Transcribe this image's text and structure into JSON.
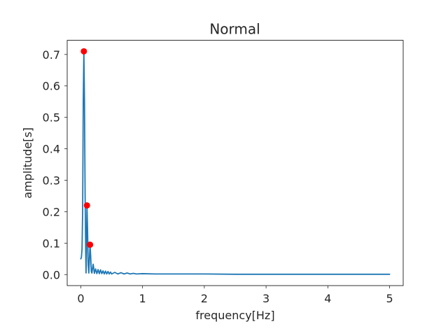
{
  "chart_data": {
    "type": "line",
    "title": "Normal",
    "xlabel": "frequency[Hz]",
    "ylabel": "amplitude[s]",
    "xlim": [
      -0.22,
      5.22
    ],
    "ylim": [
      -0.035,
      0.745
    ],
    "xticks": [
      0,
      1,
      2,
      3,
      4,
      5
    ],
    "yticks": [
      0.0,
      0.1,
      0.2,
      0.3,
      0.4,
      0.5,
      0.6,
      0.7
    ],
    "xtick_labels": [
      "0",
      "1",
      "2",
      "3",
      "4",
      "5"
    ],
    "ytick_labels": [
      "0.0",
      "0.1",
      "0.2",
      "0.3",
      "0.4",
      "0.5",
      "0.6",
      "0.7"
    ],
    "grid": false,
    "colors": {
      "line": "#1f77b4",
      "peaks": "#ff0000",
      "text": "#262626",
      "frame": "#000000"
    },
    "series": [
      {
        "values": [
          [
            0.0,
            0.05
          ],
          [
            0.01,
            0.055
          ],
          [
            0.02,
            0.08
          ],
          [
            0.03,
            0.2
          ],
          [
            0.04,
            0.55
          ],
          [
            0.05,
            0.71
          ],
          [
            0.06,
            0.55
          ],
          [
            0.07,
            0.25
          ],
          [
            0.08,
            0.07
          ],
          [
            0.085,
            0.005
          ],
          [
            0.09,
            0.05
          ],
          [
            0.1,
            0.22
          ],
          [
            0.11,
            0.14
          ],
          [
            0.12,
            0.03
          ],
          [
            0.13,
            0.005
          ],
          [
            0.14,
            0.05
          ],
          [
            0.15,
            0.095
          ],
          [
            0.16,
            0.06
          ],
          [
            0.17,
            0.01
          ],
          [
            0.18,
            0.005
          ],
          [
            0.19,
            0.02
          ],
          [
            0.2,
            0.033
          ],
          [
            0.21,
            0.02
          ],
          [
            0.22,
            0.004
          ],
          [
            0.24,
            0.018
          ],
          [
            0.26,
            0.003
          ],
          [
            0.28,
            0.016
          ],
          [
            0.3,
            0.003
          ],
          [
            0.32,
            0.015
          ],
          [
            0.34,
            0.003
          ],
          [
            0.36,
            0.012
          ],
          [
            0.38,
            0.002
          ],
          [
            0.4,
            0.011
          ],
          [
            0.42,
            0.002
          ],
          [
            0.44,
            0.01
          ],
          [
            0.46,
            0.002
          ],
          [
            0.48,
            0.008
          ],
          [
            0.5,
            0.002
          ],
          [
            0.55,
            0.007
          ],
          [
            0.6,
            0.002
          ],
          [
            0.65,
            0.006
          ],
          [
            0.7,
            0.002
          ],
          [
            0.75,
            0.005
          ],
          [
            0.8,
            0.002
          ],
          [
            0.85,
            0.004
          ],
          [
            0.9,
            0.002
          ],
          [
            1.0,
            0.003
          ],
          [
            1.2,
            0.002
          ],
          [
            1.5,
            0.002
          ],
          [
            2.0,
            0.002
          ],
          [
            2.5,
            0.001
          ],
          [
            3.0,
            0.001
          ],
          [
            3.5,
            0.001
          ],
          [
            4.0,
            0.001
          ],
          [
            4.5,
            0.001
          ],
          [
            5.0,
            0.001
          ]
        ]
      }
    ],
    "peaks": [
      [
        0.05,
        0.71
      ],
      [
        0.1,
        0.22
      ],
      [
        0.15,
        0.095
      ]
    ]
  }
}
